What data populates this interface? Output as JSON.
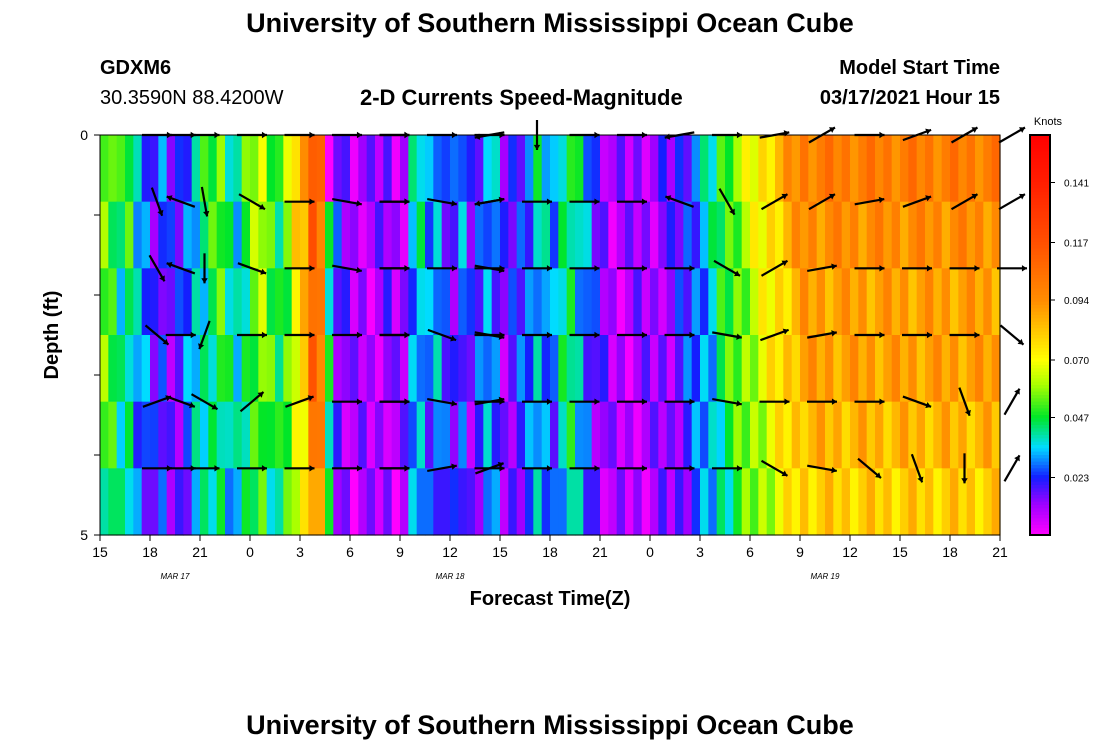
{
  "top_title": "University of Southern Mississippi Ocean Cube",
  "bottom_title": "University of Southern Mississippi Ocean Cube",
  "station": {
    "id": "GDXM6",
    "coords": "30.3590N 88.4200W"
  },
  "model": {
    "label": "Model Start Time",
    "time": "03/17/2021 Hour 15"
  },
  "chart_data": {
    "type": "heatmap",
    "title": "2-D Currents Speed-Magnitude",
    "xlabel": "Forecast Time(Z)",
    "ylabel": "Depth (ft)",
    "x_tick_labels": [
      "15",
      "18",
      "21",
      "0",
      "3",
      "6",
      "9",
      "12",
      "15",
      "18",
      "21",
      "0",
      "3",
      "6",
      "9",
      "12",
      "15",
      "18",
      "21"
    ],
    "x_date_labels": [
      {
        "label": "MAR 17",
        "tick_index": 1.5
      },
      {
        "label": "MAR 18",
        "tick_index": 7
      },
      {
        "label": "MAR 19",
        "tick_index": 14.5
      }
    ],
    "y_tick_labels": [
      "0",
      "5"
    ],
    "y_range": [
      0,
      5
    ],
    "colorbar": {
      "unit": "Knots",
      "ticks": [
        "0.141",
        "0.117",
        "0.094",
        "0.070",
        "0.047",
        "0.023"
      ],
      "range": [
        0,
        0.16
      ]
    },
    "depth_rows": [
      0,
      1,
      2,
      3,
      4,
      5
    ],
    "columns_per_tick": 6,
    "speed_profile": [
      0.06,
      0.055,
      0.045,
      0.05,
      0.035,
      0.03,
      0.02,
      0.025,
      0.018,
      0.02,
      0.03,
      0.04,
      0.045,
      0.05,
      0.055,
      0.045,
      0.04,
      0.05,
      0.06,
      0.065,
      0.055,
      0.05,
      0.06,
      0.08,
      0.09,
      0.12,
      0.11,
      0.05,
      0.02,
      0.015,
      0.01,
      0.012,
      0.01,
      0.012,
      0.015,
      0.01,
      0.012,
      0.035,
      0.04,
      0.03,
      0.035,
      0.025,
      0.02,
      0.03,
      0.018,
      0.025,
      0.035,
      0.03,
      0.015,
      0.02,
      0.025,
      0.03,
      0.04,
      0.035,
      0.03,
      0.045,
      0.05,
      0.04,
      0.03,
      0.02,
      0.015,
      0.01,
      0.01,
      0.01,
      0.012,
      0.012,
      0.012,
      0.015,
      0.015,
      0.02,
      0.025,
      0.03,
      0.035,
      0.04,
      0.05,
      0.055,
      0.06,
      0.065,
      0.07,
      0.075,
      0.08,
      0.085,
      0.09,
      0.095,
      0.1,
      0.1,
      0.1,
      0.1,
      0.1,
      0.1,
      0.1,
      0.1,
      0.1,
      0.1,
      0.1,
      0.1,
      0.1,
      0.1,
      0.1,
      0.1,
      0.1,
      0.1,
      0.1,
      0.1,
      0.1,
      0.1,
      0.1,
      0.1
    ],
    "depth_variation": [
      1.0,
      0.95,
      0.9,
      0.9,
      0.85,
      0.8
    ],
    "arrow_columns": [
      1,
      1.5,
      2,
      3,
      4,
      5,
      6,
      6,
      7,
      8,
      8,
      9,
      10,
      11,
      12,
      13,
      14,
      15,
      16,
      17,
      18,
      19
    ],
    "arrow_angles_deg": [
      [
        0,
        0,
        0,
        0,
        0,
        0,
        0,
        0,
        0,
        0,
        -170,
        -90,
        0,
        0,
        -170,
        0,
        10,
        30,
        0,
        20,
        30,
        30
      ],
      [
        -70,
        160,
        -80,
        -30,
        0,
        -10,
        0,
        0,
        -10,
        10,
        -170,
        0,
        0,
        0,
        160,
        -60,
        30,
        30,
        10,
        20,
        30,
        30
      ],
      [
        -60,
        160,
        -90,
        -20,
        0,
        -10,
        0,
        0,
        0,
        -10,
        0,
        0,
        0,
        0,
        0,
        -30,
        30,
        10,
        0,
        0,
        0,
        0
      ],
      [
        -40,
        0,
        -110,
        0,
        0,
        0,
        0,
        0,
        -20,
        -10,
        0,
        0,
        0,
        0,
        0,
        -10,
        20,
        10,
        0,
        0,
        0,
        -40
      ],
      [
        20,
        -20,
        -30,
        40,
        20,
        0,
        0,
        0,
        -10,
        10,
        0,
        0,
        0,
        0,
        0,
        -10,
        0,
        0,
        0,
        -20,
        -70,
        60
      ],
      [
        0,
        0,
        0,
        0,
        0,
        0,
        0,
        0,
        10,
        20,
        0,
        0,
        0,
        0,
        0,
        0,
        -30,
        -10,
        -40,
        -70,
        -90,
        60
      ]
    ]
  }
}
